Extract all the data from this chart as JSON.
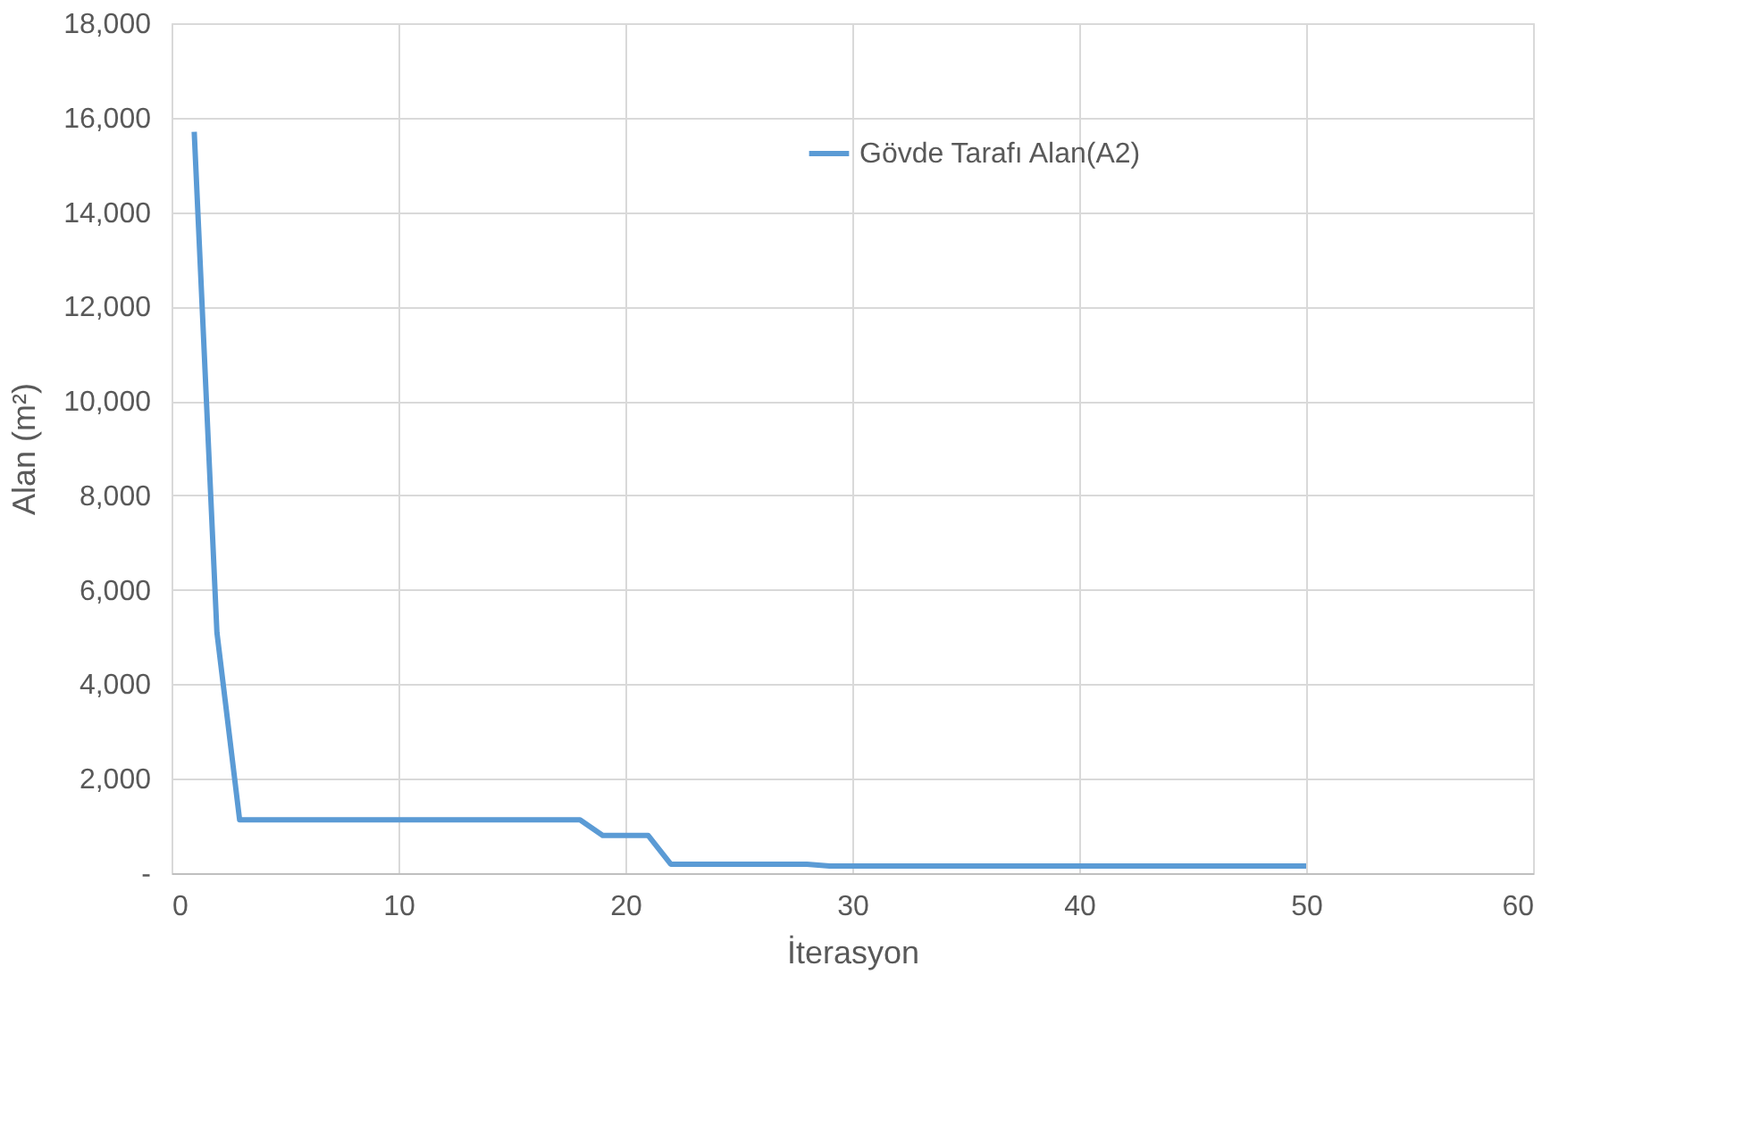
{
  "chart_data": {
    "type": "line",
    "xlabel": "İterasyon",
    "ylabel": "Alan (m²)",
    "x": [
      1,
      2,
      3,
      18,
      19,
      21,
      22,
      28,
      29,
      50
    ],
    "series": [
      {
        "name": "Gövde Tarafı Alan(A2)",
        "color": "#5b9bd5",
        "values": [
          15700,
          5100,
          1130,
          1130,
          800,
          800,
          190,
          190,
          150,
          150
        ]
      }
    ],
    "xlim": [
      0,
      60
    ],
    "xticks": [
      0,
      10,
      20,
      30,
      40,
      50,
      60
    ],
    "ylim": [
      0,
      18000
    ],
    "yticks": [
      {
        "value": 0,
        "label": "-"
      },
      {
        "value": 2000,
        "label": "2,000"
      },
      {
        "value": 4000,
        "label": "4,000"
      },
      {
        "value": 6000,
        "label": "6,000"
      },
      {
        "value": 8000,
        "label": "8,000"
      },
      {
        "value": 10000,
        "label": "10,000"
      },
      {
        "value": 12000,
        "label": "12,000"
      },
      {
        "value": 14000,
        "label": "14,000"
      },
      {
        "value": 16000,
        "label": "16,000"
      },
      {
        "value": 18000,
        "label": "18,000"
      }
    ],
    "grid": true,
    "legend": "top right",
    "line_style": "solid",
    "marker": "none"
  }
}
